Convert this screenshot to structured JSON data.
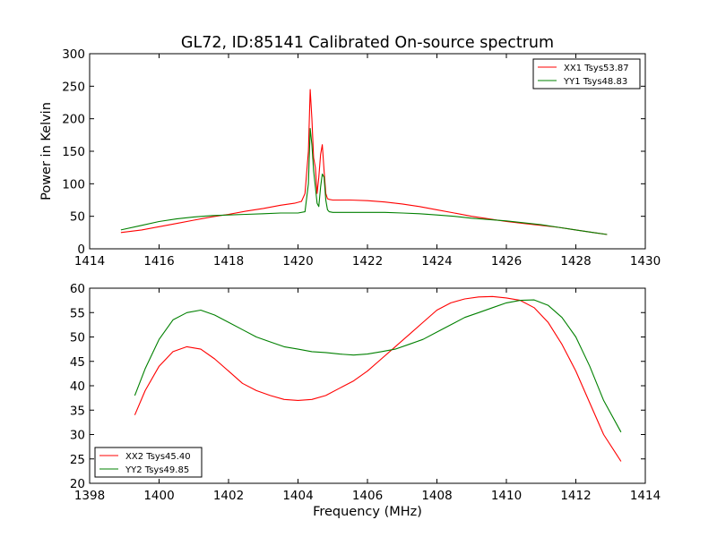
{
  "chart_data": [
    {
      "type": "line",
      "title": "GL72, ID:85141 Calibrated On-source spectrum",
      "xlabel": "",
      "ylabel": "Power in Kelvin",
      "xlim": [
        1414,
        1430
      ],
      "ylim": [
        0,
        300
      ],
      "xticks": [
        "1414",
        "1416",
        "1418",
        "1420",
        "1422",
        "1424",
        "1426",
        "1428",
        "1430"
      ],
      "yticks": [
        "0",
        "50",
        "100",
        "150",
        "200",
        "250",
        "300"
      ],
      "legend_position": "top-right",
      "series": [
        {
          "name": "XX1 Tsys53.87",
          "color": "#ff0000",
          "x": [
            1414.9,
            1415.5,
            1416.0,
            1416.5,
            1417.0,
            1417.5,
            1418.0,
            1418.5,
            1419.0,
            1419.5,
            1419.9,
            1420.1,
            1420.2,
            1420.3,
            1420.35,
            1420.4,
            1420.45,
            1420.5,
            1420.55,
            1420.6,
            1420.65,
            1420.7,
            1420.75,
            1420.8,
            1420.85,
            1420.9,
            1421.0,
            1421.5,
            1422.0,
            1422.5,
            1423.0,
            1423.5,
            1424.0,
            1424.5,
            1425.0,
            1425.5,
            1426.0,
            1426.5,
            1427.0,
            1427.5,
            1428.0,
            1428.5,
            1428.9
          ],
          "y": [
            25,
            29,
            34,
            39,
            44,
            49,
            53,
            58,
            62,
            67,
            70,
            73,
            85,
            150,
            245,
            200,
            140,
            125,
            85,
            110,
            145,
            160,
            120,
            85,
            77,
            76,
            75,
            75,
            74,
            72,
            69,
            65,
            60,
            55,
            50,
            46,
            42,
            39,
            36,
            33,
            29,
            25,
            22
          ]
        },
        {
          "name": "YY1 Tsys48.83",
          "color": "#008000",
          "x": [
            1414.9,
            1415.5,
            1416.0,
            1416.5,
            1417.0,
            1417.5,
            1418.0,
            1418.5,
            1419.0,
            1419.5,
            1420.0,
            1420.2,
            1420.3,
            1420.35,
            1420.4,
            1420.45,
            1420.5,
            1420.55,
            1420.6,
            1420.65,
            1420.7,
            1420.75,
            1420.8,
            1420.85,
            1420.9,
            1421.0,
            1421.5,
            1422.0,
            1422.5,
            1423.0,
            1423.5,
            1424.0,
            1424.5,
            1425.0,
            1425.5,
            1426.0,
            1426.5,
            1427.0,
            1427.5,
            1428.0,
            1428.5,
            1428.9
          ],
          "y": [
            29,
            36,
            42,
            46,
            49,
            51,
            52,
            53,
            54,
            55,
            55,
            57,
            100,
            185,
            160,
            120,
            95,
            70,
            65,
            95,
            115,
            110,
            75,
            60,
            57,
            56,
            56,
            56,
            56,
            55,
            54,
            52,
            50,
            47,
            45,
            43,
            40,
            37,
            33,
            29,
            25,
            22
          ]
        }
      ]
    },
    {
      "type": "line",
      "title": "",
      "xlabel": "Frequency (MHz)",
      "ylabel": "",
      "xlim": [
        1398,
        1414
      ],
      "ylim": [
        20,
        60
      ],
      "xticks": [
        "1398",
        "1400",
        "1402",
        "1404",
        "1406",
        "1408",
        "1410",
        "1412",
        "1414"
      ],
      "yticks": [
        "20",
        "25",
        "30",
        "35",
        "40",
        "45",
        "50",
        "55",
        "60"
      ],
      "legend_position": "bottom-left",
      "series": [
        {
          "name": "XX2 Tsys45.40",
          "color": "#ff0000",
          "x": [
            1399.3,
            1399.6,
            1400.0,
            1400.4,
            1400.8,
            1401.2,
            1401.6,
            1402.0,
            1402.4,
            1402.8,
            1403.2,
            1403.6,
            1404.0,
            1404.4,
            1404.8,
            1405.2,
            1405.6,
            1406.0,
            1406.4,
            1406.8,
            1407.2,
            1407.6,
            1408.0,
            1408.4,
            1408.8,
            1409.2,
            1409.6,
            1410.0,
            1410.4,
            1410.8,
            1411.2,
            1411.6,
            1412.0,
            1412.4,
            1412.8,
            1413.3
          ],
          "y": [
            34,
            39,
            44,
            47,
            48,
            47.5,
            45.5,
            43,
            40.5,
            39,
            38,
            37.2,
            37,
            37.2,
            38,
            39.5,
            41,
            43,
            45.5,
            48,
            50.5,
            53,
            55.5,
            57,
            57.8,
            58.2,
            58.3,
            58,
            57.5,
            56,
            53,
            48.5,
            43,
            36.5,
            30,
            24.5
          ]
        },
        {
          "name": "YY2 Tsys49.85",
          "color": "#008000",
          "x": [
            1399.3,
            1399.6,
            1400.0,
            1400.4,
            1400.8,
            1401.2,
            1401.6,
            1402.0,
            1402.4,
            1402.8,
            1403.2,
            1403.6,
            1404.0,
            1404.4,
            1404.8,
            1405.2,
            1405.6,
            1406.0,
            1406.4,
            1406.8,
            1407.2,
            1407.6,
            1408.0,
            1408.4,
            1408.8,
            1409.2,
            1409.6,
            1410.0,
            1410.4,
            1410.8,
            1411.2,
            1411.6,
            1412.0,
            1412.4,
            1412.8,
            1413.3
          ],
          "y": [
            38,
            43.5,
            49.5,
            53.5,
            55,
            55.5,
            54.5,
            53,
            51.5,
            50,
            49,
            48,
            47.5,
            47,
            46.8,
            46.5,
            46.3,
            46.5,
            47,
            47.5,
            48.5,
            49.5,
            51,
            52.5,
            54,
            55,
            56,
            57,
            57.5,
            57.6,
            56.5,
            54,
            50,
            44,
            37,
            30.5
          ]
        }
      ]
    }
  ]
}
